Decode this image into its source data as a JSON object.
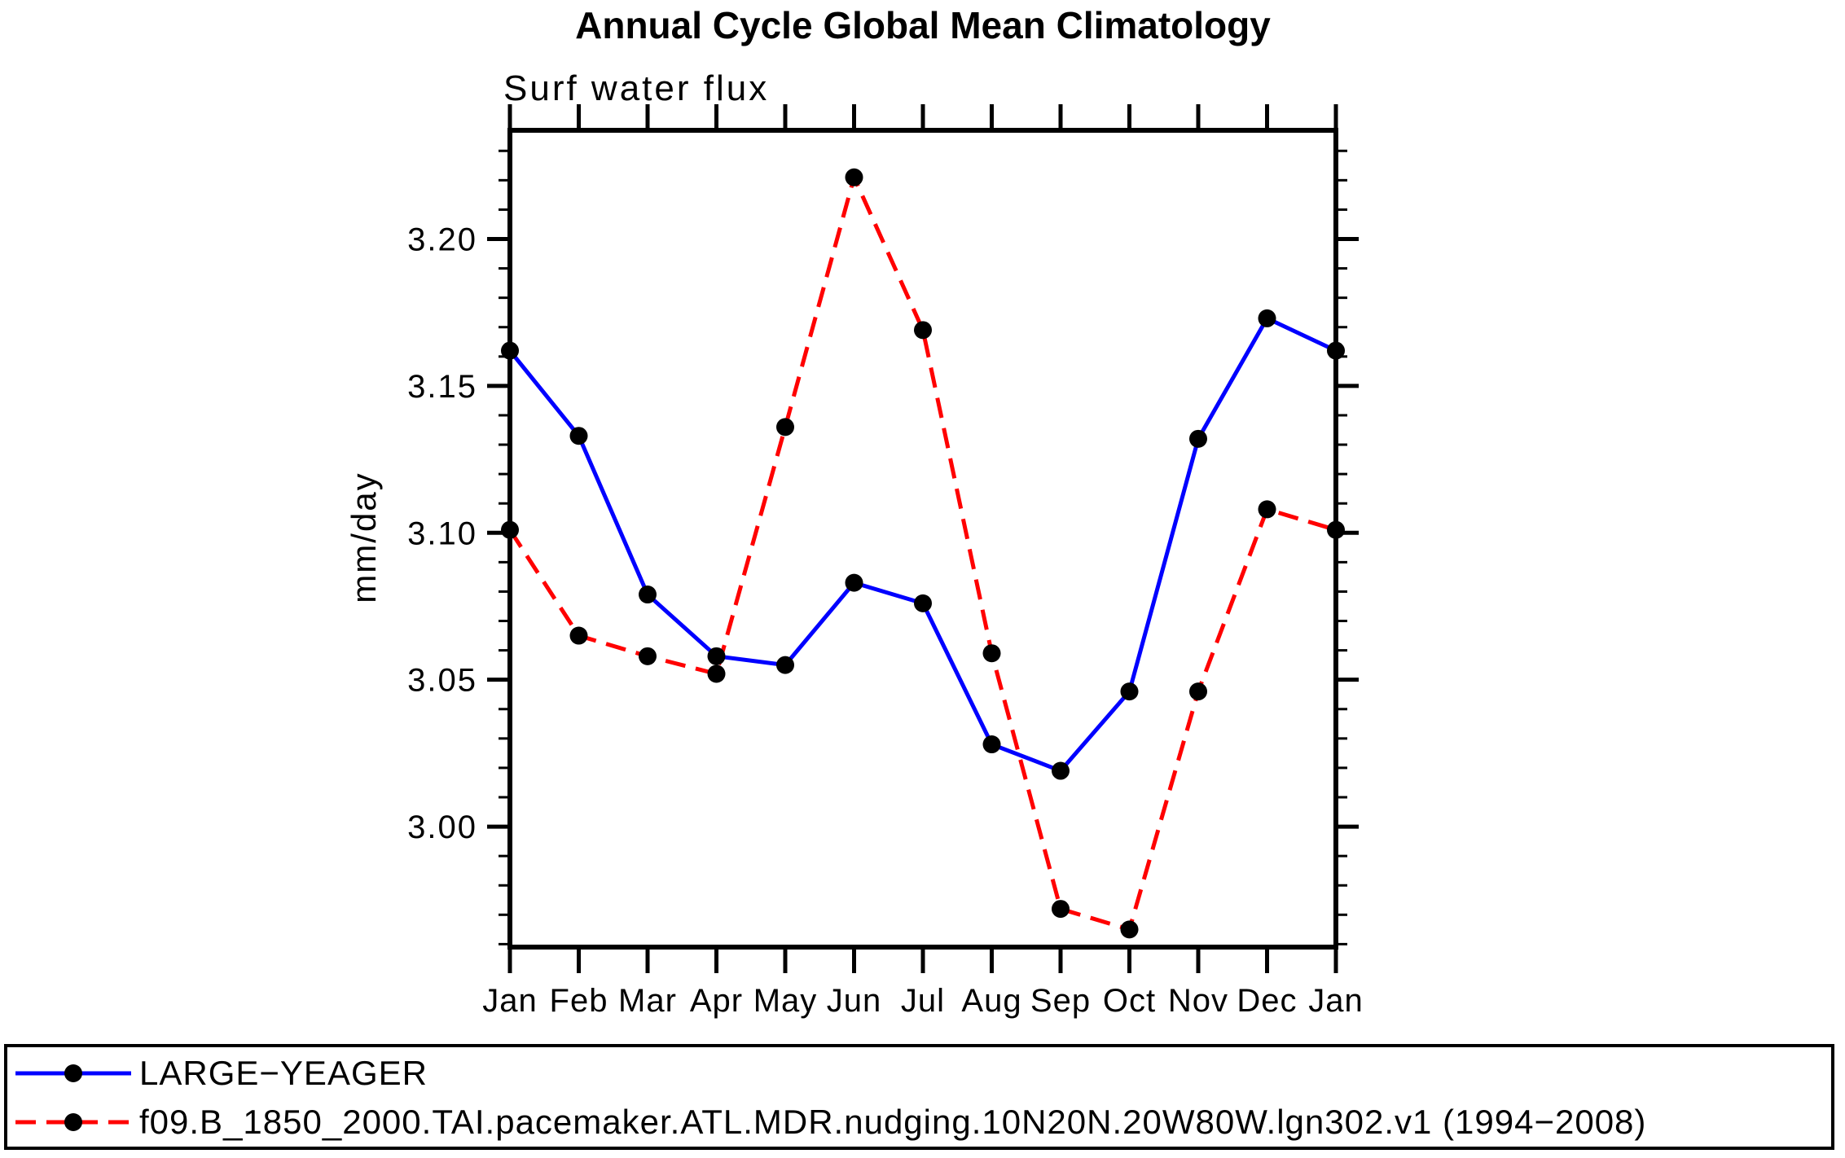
{
  "title": "Annual Cycle Global Mean Climatology",
  "subtitle": "Surf water flux",
  "ylabel": "mm/day",
  "legend": {
    "position": "bottom",
    "entries": [
      {
        "label": "LARGE−YEAGER",
        "color": "#0000ff",
        "line_style": "solid",
        "marker": "filled-circle",
        "marker_color": "#000000"
      },
      {
        "label": "f09.B_1850_2000.TAI.pacemaker.ATL.MDR.nudging.10N20N.20W80W.lgn302.v1 (1994−2008)",
        "color": "#ff0000",
        "line_style": "dashed",
        "marker": "filled-circle",
        "marker_color": "#000000"
      }
    ]
  },
  "chart_data": {
    "type": "line",
    "title": "Annual Cycle Global Mean Climatology",
    "subtitle": "Surf water flux",
    "xlabel": "",
    "ylabel": "mm/day",
    "categories": [
      "Jan",
      "Feb",
      "Mar",
      "Apr",
      "May",
      "Jun",
      "Jul",
      "Aug",
      "Sep",
      "Oct",
      "Nov",
      "Dec",
      "Jan"
    ],
    "series": [
      {
        "name": "LARGE−YEAGER",
        "color": "#0000ff",
        "line_style": "solid",
        "marker": "filled-circle",
        "marker_color": "#000000",
        "values": [
          3.162,
          3.133,
          3.079,
          3.058,
          3.055,
          3.083,
          3.076,
          3.028,
          3.019,
          3.046,
          3.132,
          3.173,
          3.162
        ]
      },
      {
        "name": "f09.B_1850_2000.TAI.pacemaker.ATL.MDR.nudging.10N20N.20W80W.lgn302.v1 (1994−2008)",
        "color": "#ff0000",
        "line_style": "dashed",
        "marker": "filled-circle",
        "marker_color": "#000000",
        "values": [
          3.101,
          3.065,
          3.058,
          3.052,
          3.136,
          3.221,
          3.169,
          3.059,
          2.972,
          2.965,
          3.046,
          3.108,
          3.101
        ]
      }
    ],
    "ylim": [
      2.959,
      3.237
    ],
    "yticks_major": [
      3.0,
      3.05,
      3.1,
      3.15,
      3.2
    ],
    "ytick_labels": [
      "3.00",
      "3.05",
      "3.10",
      "3.15",
      "3.20"
    ],
    "ytick_minor_step": 0.01,
    "grid": false,
    "axis_color": "#000000",
    "legend_position": "bottom"
  }
}
